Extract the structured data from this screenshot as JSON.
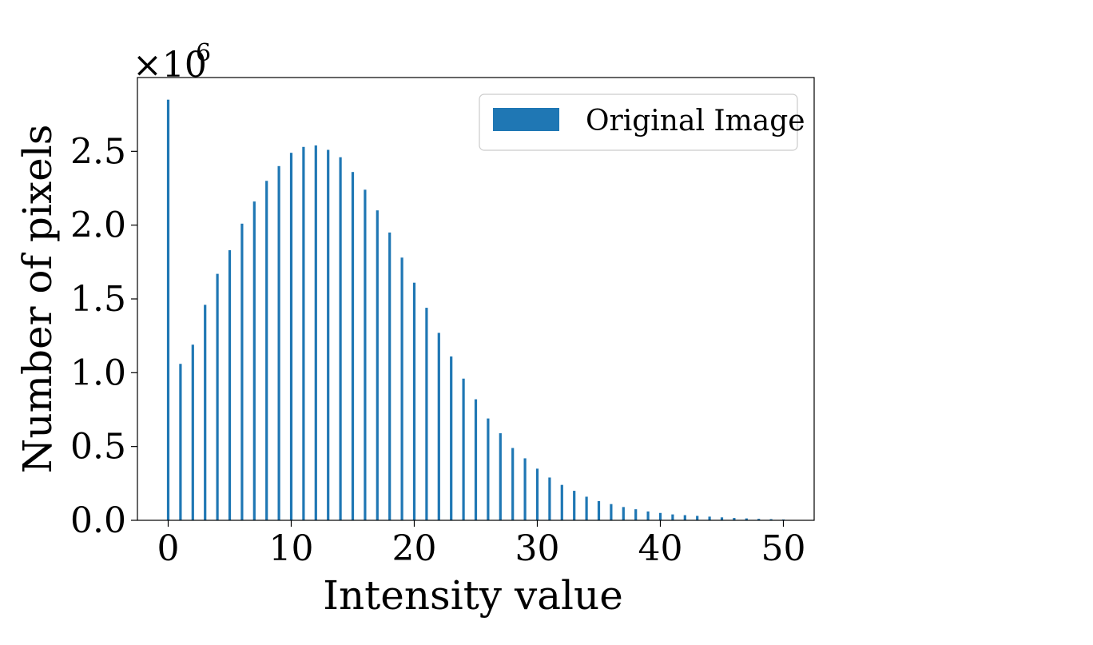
{
  "chart_data": {
    "type": "bar",
    "title": "",
    "xlabel": "Intensity value",
    "ylabel": "Number of pixels",
    "y_multiplier_base": "×10",
    "y_multiplier_exponent": "6",
    "xlim": [
      -2.5,
      52.5
    ],
    "ylim": [
      0,
      3.0
    ],
    "x_ticks": [
      0,
      10,
      20,
      30,
      40,
      50
    ],
    "x_tick_labels": [
      "0",
      "10",
      "20",
      "30",
      "40",
      "50"
    ],
    "y_ticks": [
      0.0,
      0.5,
      1.0,
      1.5,
      2.0,
      2.5
    ],
    "y_tick_labels": [
      "0.0",
      "0.5",
      "1.0",
      "1.5",
      "2.0",
      "2.5"
    ],
    "grid": false,
    "legend_position": "top-right",
    "series": [
      {
        "name": "Original Image",
        "color": "#1f77b4",
        "x": [
          0,
          1,
          2,
          3,
          4,
          5,
          6,
          7,
          8,
          9,
          10,
          11,
          12,
          13,
          14,
          15,
          16,
          17,
          18,
          19,
          20,
          21,
          22,
          23,
          24,
          25,
          26,
          27,
          28,
          29,
          30,
          31,
          32,
          33,
          34,
          35,
          36,
          37,
          38,
          39,
          40,
          41,
          42,
          43,
          44,
          45,
          46,
          47,
          48,
          49,
          50
        ],
        "values": [
          2.85,
          1.06,
          1.19,
          1.46,
          1.67,
          1.83,
          2.01,
          2.16,
          2.3,
          2.4,
          2.49,
          2.53,
          2.54,
          2.51,
          2.46,
          2.36,
          2.24,
          2.1,
          1.95,
          1.78,
          1.61,
          1.44,
          1.27,
          1.11,
          0.96,
          0.82,
          0.69,
          0.59,
          0.49,
          0.42,
          0.35,
          0.29,
          0.24,
          0.2,
          0.16,
          0.13,
          0.11,
          0.09,
          0.075,
          0.06,
          0.05,
          0.04,
          0.035,
          0.03,
          0.025,
          0.02,
          0.016,
          0.013,
          0.01,
          0.008,
          0.006
        ]
      }
    ]
  }
}
